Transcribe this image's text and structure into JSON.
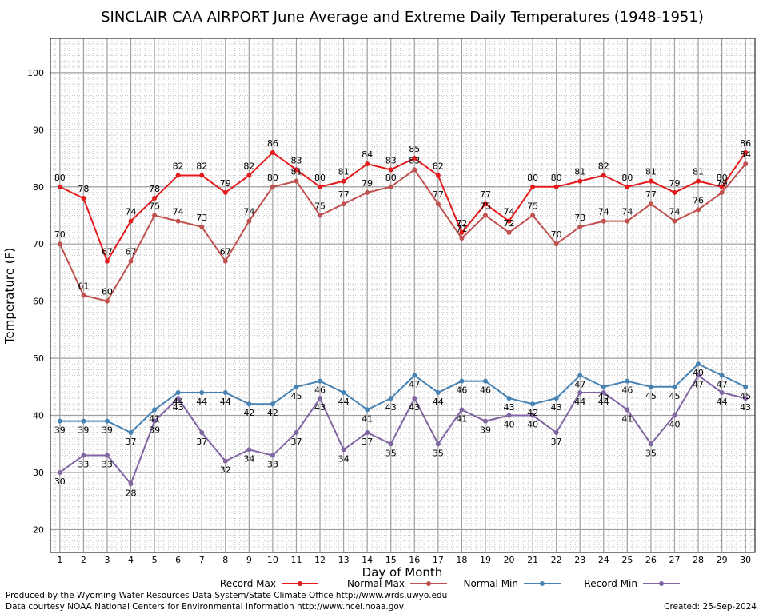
{
  "chart_data": {
    "type": "line",
    "title": "SINCLAIR CAA AIRPORT June Average and Extreme Daily Temperatures (1948-1951)",
    "xlabel": "Day of Month",
    "ylabel": "Temperature (F)",
    "ylim": [
      16,
      106
    ],
    "xlim": [
      0.6,
      30.4
    ],
    "yticks": [
      20,
      30,
      40,
      50,
      60,
      70,
      80,
      90,
      100
    ],
    "x": [
      1,
      2,
      3,
      4,
      5,
      6,
      7,
      8,
      9,
      10,
      11,
      12,
      13,
      14,
      15,
      16,
      17,
      18,
      19,
      20,
      21,
      22,
      23,
      24,
      25,
      26,
      27,
      28,
      29,
      30
    ],
    "grid": true,
    "legend_position": "bottom",
    "series": [
      {
        "name": "Record Max",
        "color": "#e41a1c",
        "values": [
          80,
          78,
          67,
          74,
          78,
          82,
          82,
          79,
          82,
          86,
          83,
          80,
          81,
          84,
          83,
          85,
          82,
          72,
          77,
          74,
          80,
          80,
          81,
          82,
          80,
          81,
          79,
          81,
          80,
          86
        ]
      },
      {
        "name": "Normal Max",
        "color": "#c0504d",
        "values": [
          70,
          61,
          60,
          67,
          75,
          74,
          73,
          67,
          74,
          80,
          81,
          75,
          77,
          79,
          80,
          83,
          77,
          71,
          75,
          72,
          75,
          70,
          73,
          74,
          74,
          77,
          74,
          76,
          79,
          84
        ]
      },
      {
        "name": "Normal Min",
        "color": "#4682b4",
        "values": [
          39,
          39,
          39,
          37,
          41,
          44,
          44,
          44,
          42,
          42,
          45,
          46,
          44,
          41,
          43,
          47,
          44,
          46,
          46,
          43,
          42,
          43,
          47,
          45,
          46,
          45,
          45,
          49,
          47,
          45
        ]
      },
      {
        "name": "Record Min",
        "color": "#8064a2",
        "values": [
          30,
          33,
          33,
          28,
          39,
          43,
          37,
          32,
          34,
          33,
          37,
          43,
          34,
          37,
          35,
          43,
          35,
          41,
          39,
          40,
          40,
          37,
          44,
          44,
          41,
          35,
          40,
          47,
          44,
          43
        ]
      }
    ]
  },
  "footer": {
    "line1": "Produced by the Wyoming Water Resources Data System/State Climate Office http://www.wrds.uwyo.edu",
    "line2": "Data courtesy NOAA National Centers for Environmental Information http://www.ncei.noaa.gov",
    "created": "Created:  25-Sep-2024"
  }
}
